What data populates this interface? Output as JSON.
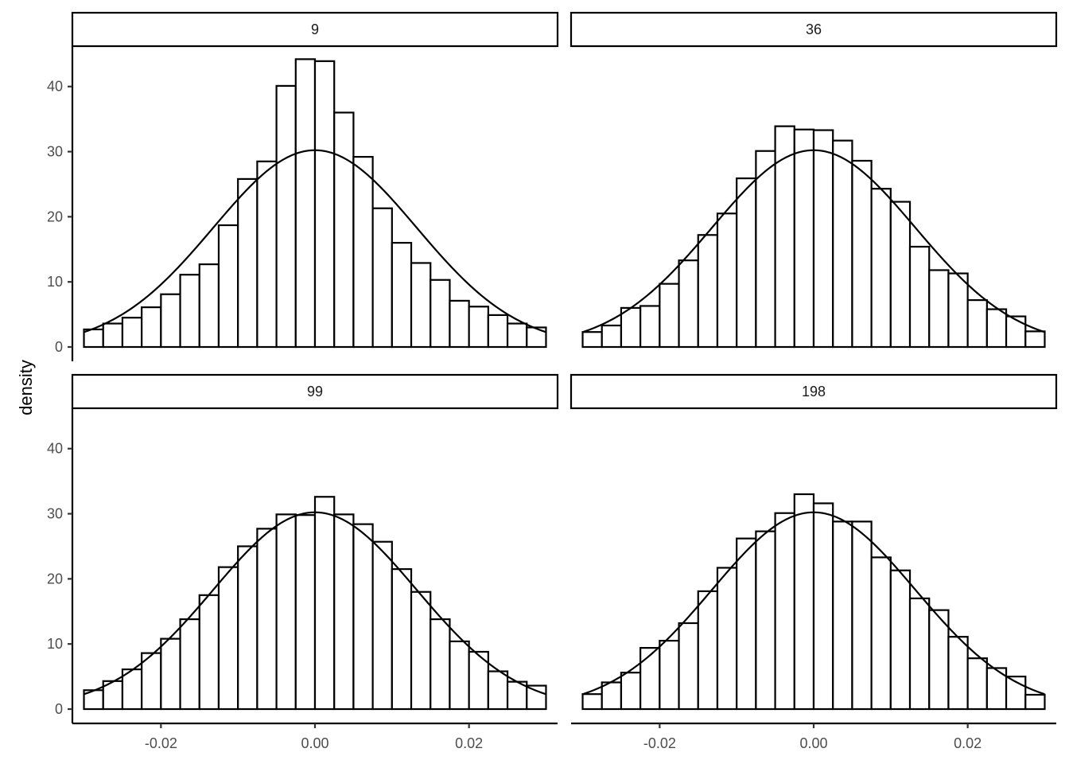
{
  "chart_data": {
    "type": "bar",
    "ylabel": "density",
    "xlabel": "",
    "xlim": [
      -0.0315,
      0.0315
    ],
    "ylim": [
      -2.2,
      46.2
    ],
    "x_ticks": [
      -0.02,
      0.0,
      0.02
    ],
    "x_tick_labels": [
      "-0.02",
      "0.00",
      "0.02"
    ],
    "y_ticks": [
      0,
      10,
      20,
      30,
      40
    ],
    "y_tick_labels": [
      "0",
      "10",
      "20",
      "30",
      "40"
    ],
    "bin_start": -0.03,
    "bin_width": 0.0025,
    "normal_curve": {
      "mean": 0.0,
      "sd": 0.0132
    },
    "panels": [
      {
        "strip": "9",
        "values": [
          2.7,
          3.6,
          4.5,
          6.1,
          8.1,
          11.1,
          12.7,
          18.7,
          25.8,
          28.5,
          40.1,
          44.2,
          43.9,
          36.0,
          29.2,
          21.3,
          16.0,
          12.9,
          10.3,
          7.1,
          6.2,
          4.9,
          3.6,
          3.0
        ]
      },
      {
        "strip": "36",
        "values": [
          2.3,
          3.3,
          6.0,
          6.3,
          9.7,
          13.3,
          17.2,
          20.5,
          25.9,
          30.1,
          33.9,
          33.4,
          33.3,
          31.7,
          28.6,
          24.3,
          22.3,
          15.4,
          11.8,
          11.3,
          7.2,
          5.8,
          4.7,
          2.4
        ]
      },
      {
        "strip": "99",
        "values": [
          2.9,
          4.3,
          6.1,
          8.6,
          10.8,
          13.8,
          17.5,
          21.8,
          25.0,
          27.7,
          29.9,
          29.8,
          32.6,
          29.9,
          28.4,
          25.7,
          21.5,
          18.0,
          13.8,
          10.4,
          8.8,
          5.8,
          4.2,
          3.6
        ]
      },
      {
        "strip": "198",
        "values": [
          2.3,
          4.1,
          5.6,
          9.4,
          10.5,
          13.2,
          18.1,
          21.7,
          26.2,
          27.3,
          30.1,
          33.0,
          31.6,
          28.8,
          28.8,
          23.3,
          21.3,
          17.0,
          15.2,
          11.1,
          7.8,
          6.3,
          5.0,
          2.2
        ]
      }
    ]
  }
}
